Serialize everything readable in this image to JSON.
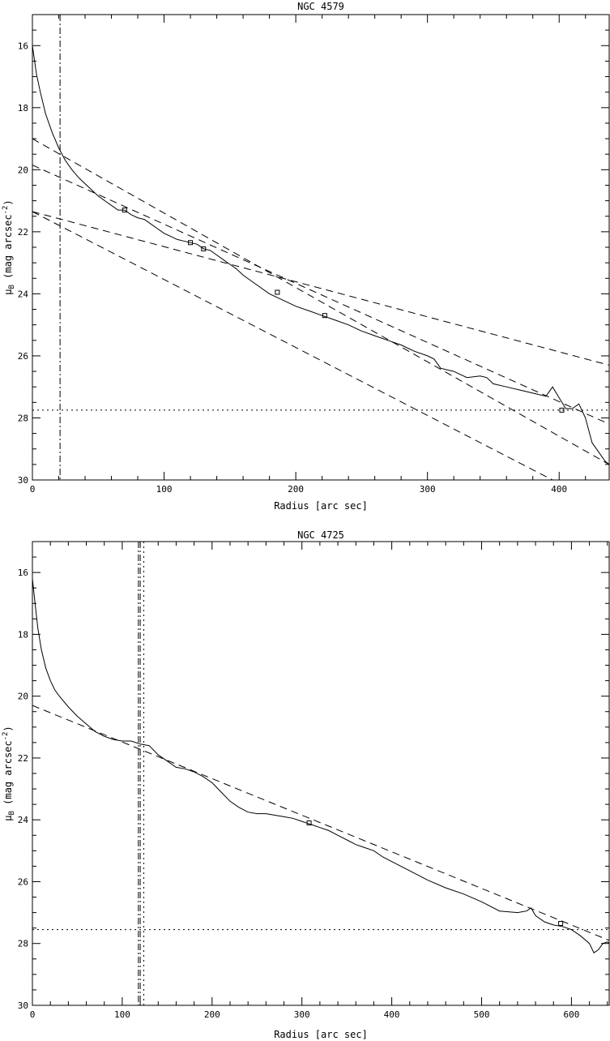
{
  "chart_data": [
    {
      "type": "line",
      "title": "NGC 4579",
      "xlabel": "Radius [arc sec]",
      "ylabel": "μ_B (mag arcsec^-2)",
      "ylabel_main": "μ",
      "ylabel_sub": "B",
      "ylabel_rest": " (mag arcsec",
      "ylabel_sup": "-2",
      "ylabel_close": ")",
      "xlim": [
        0,
        438
      ],
      "ylim": [
        30,
        15
      ],
      "y_inverted": true,
      "xticks": [
        0,
        100,
        200,
        300,
        400
      ],
      "xtick_labels": [
        "0",
        "100",
        "200",
        "300",
        "400"
      ],
      "yticks": [
        16,
        18,
        20,
        22,
        24,
        26,
        28,
        30
      ],
      "ytick_labels": [
        "16",
        "18",
        "20",
        "22",
        "24",
        "26",
        "28",
        "30"
      ],
      "grid": false,
      "series": [
        {
          "style": "solid",
          "x": [
            0,
            3,
            6,
            10,
            15,
            20,
            25,
            30,
            35,
            40,
            45,
            50,
            55,
            60,
            65,
            70,
            75,
            80,
            85,
            90,
            95,
            100,
            105,
            110,
            115,
            120,
            125,
            130,
            135,
            140,
            145,
            150,
            155,
            160,
            170,
            180,
            190,
            200,
            210,
            220,
            230,
            240,
            250,
            260,
            270,
            280,
            290,
            300,
            305,
            310,
            320,
            330,
            340,
            345,
            350,
            360,
            370,
            380,
            390,
            395,
            400,
            405,
            410,
            415,
            420,
            425,
            430,
            435,
            438
          ],
          "y": [
            16.0,
            16.9,
            17.5,
            18.2,
            18.8,
            19.3,
            19.7,
            20.0,
            20.25,
            20.45,
            20.65,
            20.85,
            21.0,
            21.15,
            21.3,
            21.3,
            21.45,
            21.55,
            21.6,
            21.75,
            21.9,
            22.05,
            22.15,
            22.25,
            22.3,
            22.35,
            22.4,
            22.55,
            22.6,
            22.75,
            22.9,
            23.05,
            23.2,
            23.4,
            23.7,
            24.0,
            24.2,
            24.4,
            24.55,
            24.7,
            24.85,
            25.0,
            25.2,
            25.35,
            25.5,
            25.65,
            25.85,
            26.0,
            26.1,
            26.4,
            26.5,
            26.7,
            26.65,
            26.7,
            26.9,
            27.0,
            27.1,
            27.2,
            27.3,
            27.0,
            27.35,
            27.7,
            27.7,
            27.55,
            28.0,
            28.8,
            29.1,
            29.4,
            29.5
          ]
        },
        {
          "style": "dashed",
          "x": [
            0,
            438
          ],
          "y": [
            19.0,
            29.5
          ]
        },
        {
          "style": "dashed",
          "x": [
            0,
            438
          ],
          "y": [
            19.85,
            28.2
          ]
        },
        {
          "style": "dashed",
          "x": [
            0,
            395
          ],
          "y": [
            21.35,
            30.0
          ]
        },
        {
          "style": "dashed",
          "x": [
            0,
            438
          ],
          "y": [
            21.35,
            26.3
          ]
        }
      ],
      "markers": {
        "x": [
          70,
          120,
          130,
          186,
          222,
          402
        ],
        "y": [
          21.3,
          22.35,
          22.55,
          23.95,
          24.7,
          27.75
        ]
      },
      "hlines": [
        {
          "y": 27.75,
          "style": "dotted"
        }
      ],
      "vlines": [
        {
          "x": 21,
          "style": "dashdot"
        }
      ]
    },
    {
      "type": "line",
      "title": "NGC 4725",
      "xlabel": "Radius [arc sec]",
      "ylabel": "μ_B (mag arcsec^-2)",
      "ylabel_main": "μ",
      "ylabel_sub": "B",
      "ylabel_rest": " (mag arcsec",
      "ylabel_sup": "-2",
      "ylabel_close": ")",
      "xlim": [
        0,
        642
      ],
      "ylim": [
        30,
        15
      ],
      "y_inverted": true,
      "xticks": [
        0,
        100,
        200,
        300,
        400,
        500,
        600
      ],
      "xtick_labels": [
        "0",
        "100",
        "200",
        "300",
        "400",
        "500",
        "600"
      ],
      "yticks": [
        16,
        18,
        20,
        22,
        24,
        26,
        28,
        30
      ],
      "ytick_labels": [
        "16",
        "18",
        "20",
        "22",
        "24",
        "26",
        "28",
        "30"
      ],
      "grid": false,
      "series": [
        {
          "style": "solid",
          "x": [
            0,
            3,
            6,
            10,
            15,
            20,
            25,
            30,
            40,
            50,
            60,
            70,
            80,
            90,
            100,
            110,
            120,
            130,
            140,
            150,
            160,
            170,
            180,
            190,
            200,
            210,
            220,
            230,
            240,
            250,
            260,
            270,
            280,
            290,
            300,
            310,
            320,
            330,
            340,
            350,
            360,
            370,
            380,
            390,
            400,
            420,
            440,
            460,
            480,
            500,
            520,
            540,
            550,
            555,
            560,
            570,
            580,
            590,
            600,
            610,
            620,
            625,
            630,
            635,
            640,
            642
          ],
          "y": [
            16.2,
            17.0,
            17.8,
            18.5,
            19.1,
            19.5,
            19.8,
            20.0,
            20.35,
            20.65,
            20.9,
            21.15,
            21.3,
            21.4,
            21.45,
            21.45,
            21.55,
            21.6,
            21.9,
            22.1,
            22.3,
            22.35,
            22.45,
            22.6,
            22.8,
            23.1,
            23.4,
            23.6,
            23.75,
            23.8,
            23.8,
            23.85,
            23.9,
            23.95,
            24.05,
            24.15,
            24.25,
            24.35,
            24.5,
            24.65,
            24.8,
            24.9,
            25.0,
            25.2,
            25.35,
            25.65,
            25.95,
            26.2,
            26.4,
            26.65,
            26.95,
            27.0,
            26.95,
            26.85,
            27.1,
            27.3,
            27.4,
            27.45,
            27.55,
            27.75,
            28.0,
            28.3,
            28.2,
            28.0,
            27.95,
            28.0
          ]
        },
        {
          "style": "dashed",
          "x": [
            0,
            642
          ],
          "y": [
            20.3,
            27.9
          ]
        }
      ],
      "markers": {
        "x": [
          308,
          588
        ],
        "y": [
          24.1,
          27.35
        ]
      },
      "hlines": [
        {
          "y": 27.55,
          "style": "dotted"
        }
      ],
      "vlines": [
        {
          "x": 118,
          "style": "dashdot"
        },
        {
          "x": 120,
          "style": "dashdot"
        },
        {
          "x": 124,
          "style": "dotted"
        }
      ]
    }
  ]
}
